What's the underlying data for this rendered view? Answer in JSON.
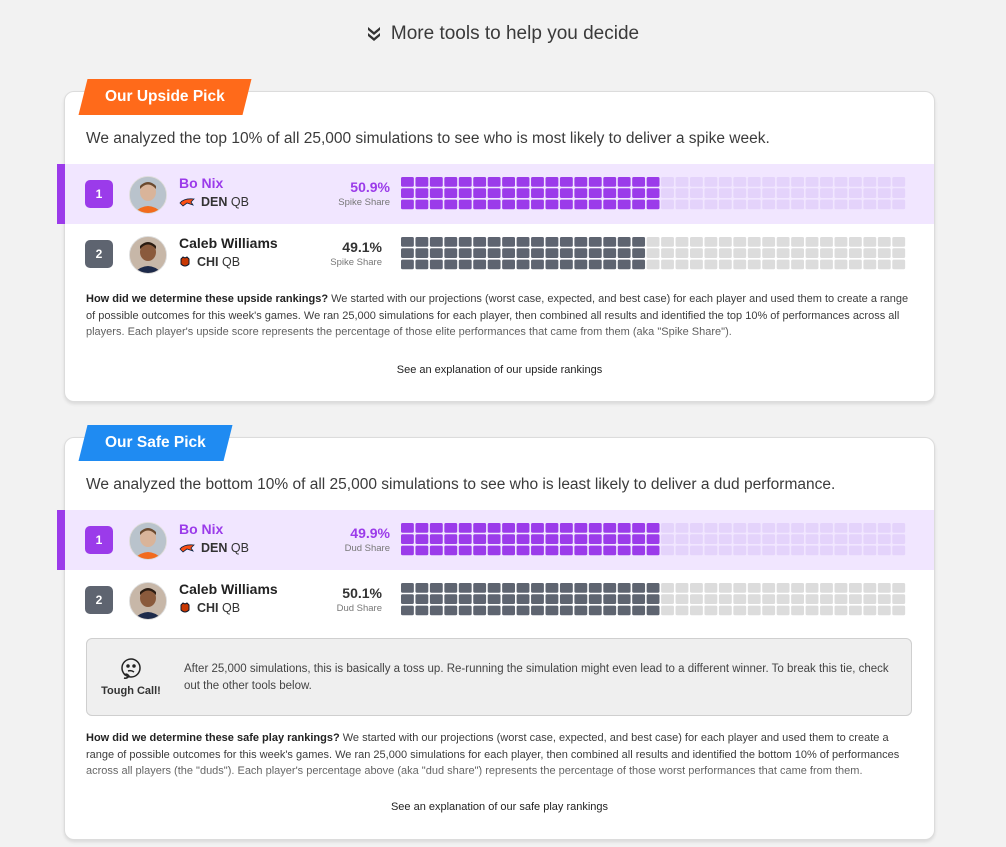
{
  "header": {
    "title": "More tools to help you decide",
    "icon": "double-chevron-down-icon"
  },
  "upside": {
    "badge": "Our Upside Pick",
    "intro": "We analyzed the top 10% of all 25,000 simulations to see who is most likely to deliver a spike week.",
    "players": [
      {
        "rank": "1",
        "name": "Bo Nix",
        "team": "DEN",
        "pos": "QB",
        "pct": "50.9%",
        "label": "Spike Share",
        "share": 0.509
      },
      {
        "rank": "2",
        "name": "Caleb Williams",
        "team": "CHI",
        "pos": "QB",
        "pct": "49.1%",
        "label": "Spike Share",
        "share": 0.491
      }
    ],
    "explain_title": "How did we determine these upside rankings?",
    "explain_body": "We started with our projections (worst case, expected, and best case) for each player and used them to create a range of possible outcomes for this week's games. We ran 25,000 simulations for each player, then combined all results and identified the top 10% of performances across all players. Each player's upside score represents the percentage of those elite performances that came from them (aka \"Spike Share\").",
    "link": "See an explanation of our upside rankings"
  },
  "safe": {
    "badge": "Our Safe Pick",
    "intro": "We analyzed the bottom 10% of all 25,000 simulations to see who is least likely to deliver a dud performance.",
    "players": [
      {
        "rank": "1",
        "name": "Bo Nix",
        "team": "DEN",
        "pos": "QB",
        "pct": "49.9%",
        "label": "Dud Share",
        "share": 0.499
      },
      {
        "rank": "2",
        "name": "Caleb Williams",
        "team": "CHI",
        "pos": "QB",
        "pct": "50.1%",
        "label": "Dud Share",
        "share": 0.501
      }
    ],
    "tough_call": {
      "label": "Tough Call!",
      "text": "After 25,000 simulations, this is basically a toss up. Re-running the simulation might even lead to a different winner. To break this tie, check out the other tools below."
    },
    "explain_title": "How did we determine these safe play rankings?",
    "explain_body": "We started with our projections (worst case, expected, and best case) for each player and used them to create a range of possible outcomes for this week's games. We ran 25,000 simulations for each player, then combined all results and identified the bottom 10% of performances across all players (the \"duds\"). Each player's percentage above (aka \"dud share\") represents the percentage of those worst performances that came from them.",
    "link": "See an explanation of our safe play rankings"
  },
  "colors": {
    "upside_accent": "#ff6a1a",
    "safe_accent": "#1f8bf2",
    "leader_purple": "#9b3bea",
    "leader_bg": "#f1e6ff",
    "rank_gray": "#5e6470",
    "grid_empty_purple": "#e4d3fb",
    "grid_empty_gray": "#dcdcdc",
    "grid_filled_gray": "#5e6470"
  }
}
